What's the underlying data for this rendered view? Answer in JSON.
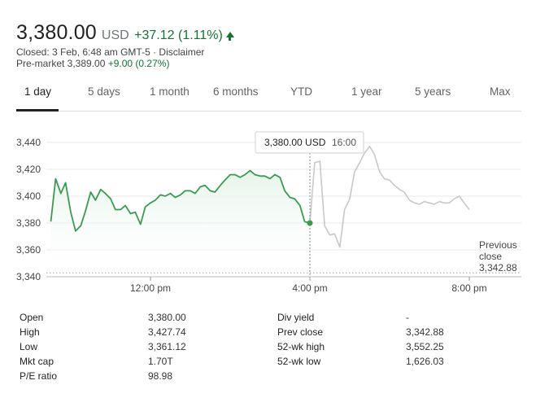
{
  "quote": {
    "price": "3,380.00",
    "currency": "USD",
    "change": "+37.12 (1.11%)",
    "direction_icon": "up-arrow-icon",
    "closed_text": "Closed: 3 Feb, 6:48 am GMT-5 · Disclaimer",
    "premarket_label": "Pre-market 3,389.00 ",
    "premarket_change": "+9.00 (0.27%)"
  },
  "tabs": [
    {
      "label": "1 day",
      "active": true
    },
    {
      "label": "5 days"
    },
    {
      "label": "1 month"
    },
    {
      "label": "6 months"
    },
    {
      "label": "YTD"
    },
    {
      "label": "1 year"
    },
    {
      "label": "5 years"
    },
    {
      "label": "Max"
    }
  ],
  "chart_data": {
    "type": "line",
    "ylim": [
      3340,
      3440
    ],
    "y_ticks": [
      3440,
      3420,
      3400,
      3380,
      3360,
      3340
    ],
    "y_tick_labels": [
      "3,440",
      "3,420",
      "3,400",
      "3,380",
      "3,360",
      "3,340"
    ],
    "x_tick_labels": [
      "12:00 pm",
      "4:00 pm",
      "8:00 pm"
    ],
    "x_ticks_hours": [
      12,
      16,
      20
    ],
    "x_range_hours": [
      9.5,
      20
    ],
    "tooltip": {
      "value": "3,380.00 USD",
      "time": "16:00"
    },
    "previous_close": {
      "label_line1": "Previous",
      "label_line2": "close",
      "value": 3342.88,
      "value_label": "3,342.88"
    },
    "colors": {
      "regular": "#3c9a50",
      "fill": "#e6f4ea",
      "extended": "#c8c8c8",
      "grid": "#e8e8e8"
    },
    "series": [
      {
        "x": [
          9.5,
          9.62,
          9.75,
          9.87,
          10.0,
          10.12,
          10.25,
          10.37,
          10.5,
          10.62,
          10.75,
          10.87,
          11.0,
          11.12,
          11.25,
          11.37,
          11.5,
          11.62,
          11.75,
          11.87,
          12.0,
          12.12,
          12.25,
          12.37,
          12.5,
          12.62,
          12.75,
          12.87,
          13.0,
          13.12,
          13.25,
          13.37,
          13.5,
          13.62,
          13.75,
          13.87,
          14.0,
          14.12,
          14.25,
          14.37,
          14.5,
          14.62,
          14.75,
          14.87,
          15.0,
          15.12,
          15.25,
          15.37,
          15.5,
          15.62,
          15.75,
          15.87,
          16.0
        ],
        "values": [
          3381,
          3413,
          3402,
          3410,
          3388,
          3374,
          3378,
          3389,
          3403,
          3397,
          3405,
          3402,
          3398,
          3390,
          3390,
          3393,
          3387,
          3388,
          3379,
          3392,
          3395,
          3397,
          3401,
          3400,
          3402,
          3399,
          3401,
          3404,
          3404,
          3402,
          3407,
          3408,
          3404,
          3403,
          3408,
          3412,
          3416,
          3416,
          3414,
          3416,
          3419,
          3416,
          3415,
          3415,
          3413,
          3416,
          3414,
          3404,
          3399,
          3398,
          3393,
          3381,
          3380
        ]
      },
      {
        "x": [
          16.0,
          16.12,
          16.25,
          16.37,
          16.5,
          16.62,
          16.75,
          16.87,
          17.0,
          17.12,
          17.25,
          17.37,
          17.5,
          17.62,
          17.75,
          17.87,
          18.0,
          18.12,
          18.25,
          18.37,
          18.5,
          18.62,
          18.75,
          18.87,
          19.0,
          19.12,
          19.25,
          19.37,
          19.5,
          19.62,
          19.75,
          19.87,
          20.0
        ],
        "values": [
          3380,
          3425,
          3426,
          3378,
          3371,
          3372,
          3362,
          3390,
          3398,
          3418,
          3425,
          3432,
          3437,
          3431,
          3418,
          3413,
          3412,
          3408,
          3405,
          3403,
          3397,
          3395,
          3394,
          3396,
          3395,
          3394,
          3396,
          3395,
          3395,
          3398,
          3400,
          3395,
          3390
        ]
      }
    ]
  },
  "stats": {
    "left": [
      {
        "label": "Open",
        "value": "3,380.00"
      },
      {
        "label": "High",
        "value": "3,427.74"
      },
      {
        "label": "Low",
        "value": "3,361.12"
      },
      {
        "label": "Mkt cap",
        "value": "1.70T"
      },
      {
        "label": "P/E ratio",
        "value": "98.98"
      }
    ],
    "right": [
      {
        "label": "Div yield",
        "value": "-"
      },
      {
        "label": "Prev close",
        "value": "3,342.88"
      },
      {
        "label": "52-wk high",
        "value": "3,552.25"
      },
      {
        "label": "52-wk low",
        "value": "1,626.03"
      }
    ]
  }
}
